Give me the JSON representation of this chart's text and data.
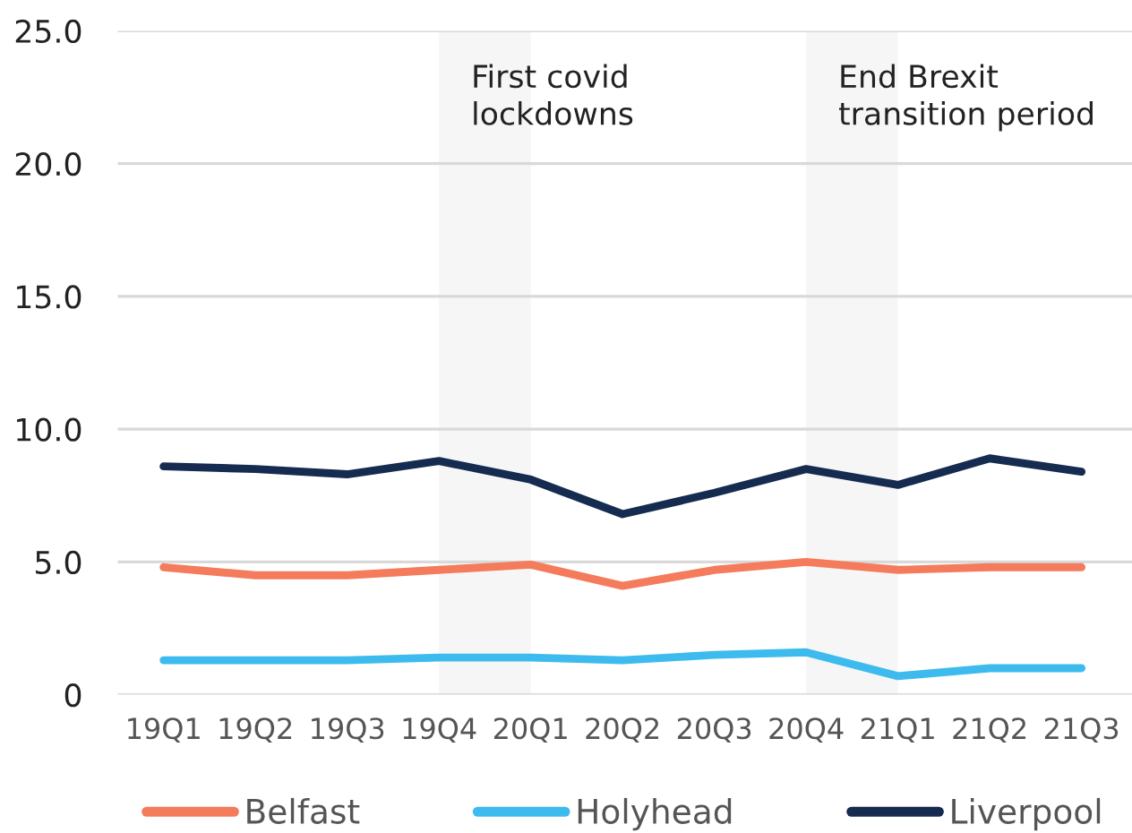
{
  "chart_data": {
    "type": "line",
    "categories": [
      "19Q1",
      "19Q2",
      "19Q3",
      "19Q4",
      "20Q1",
      "20Q2",
      "20Q3",
      "20Q4",
      "21Q1",
      "21Q2",
      "21Q3"
    ],
    "series": [
      {
        "name": "Belfast",
        "color": "#f47b5b",
        "values": [
          4.8,
          4.5,
          4.5,
          4.7,
          4.9,
          4.1,
          4.7,
          5.0,
          4.7,
          4.8,
          4.8
        ]
      },
      {
        "name": "Holyhead",
        "color": "#3dbbee",
        "values": [
          1.3,
          1.3,
          1.3,
          1.4,
          1.4,
          1.3,
          1.5,
          1.6,
          0.7,
          1.0,
          1.0
        ]
      },
      {
        "name": "Liverpool",
        "color": "#152b4f",
        "values": [
          8.6,
          8.5,
          8.3,
          8.8,
          8.1,
          6.8,
          7.6,
          8.5,
          7.9,
          8.9,
          8.4
        ]
      }
    ],
    "ylim": [
      0,
      25
    ],
    "yticks": [
      0,
      {
        "value": 5,
        "label": "5.0"
      },
      {
        "value": 10,
        "label": "10.0"
      },
      {
        "value": 15,
        "label": "15.0"
      },
      {
        "value": 20,
        "label": "20.0"
      },
      {
        "value": 25,
        "label": "25.0"
      }
    ],
    "bands": [
      {
        "axis": "x",
        "from": "19Q4",
        "to": "20Q1",
        "label": "First covid\nlockdowns",
        "color": "#f6f6f6"
      },
      {
        "axis": "x",
        "from": "20Q4",
        "to": "21Q1",
        "label": "End Brexit\ntransition period",
        "color": "#f6f6f6"
      }
    ],
    "grid": "y",
    "legend": "bottom",
    "marker": "none",
    "line_style": "solid"
  }
}
